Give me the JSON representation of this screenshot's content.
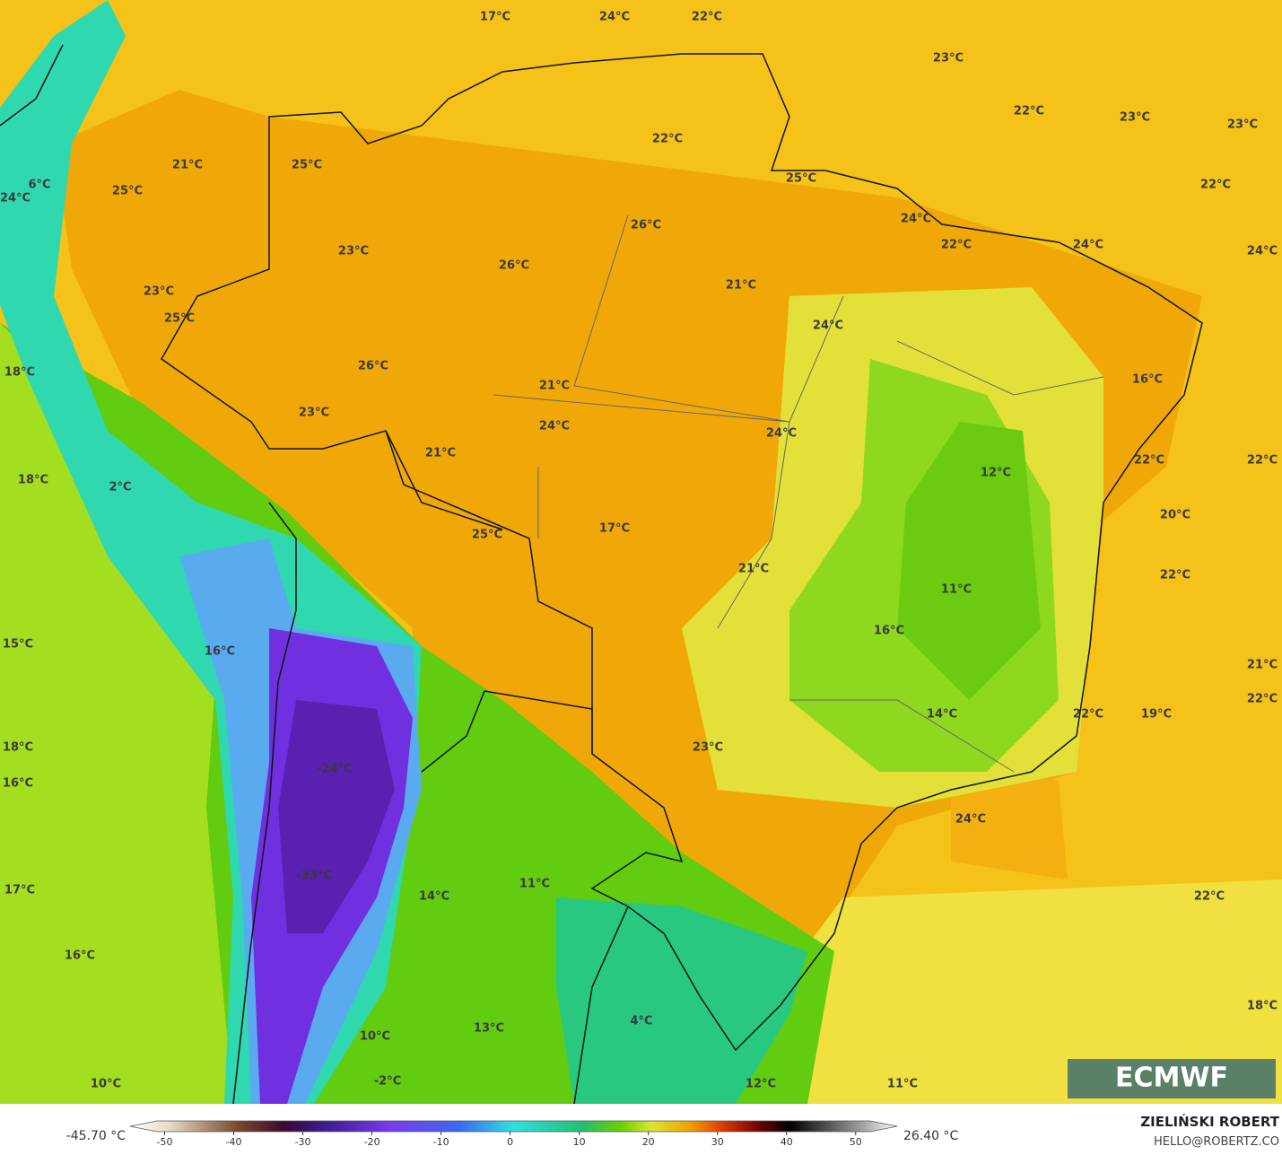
{
  "map": {
    "labels": [
      "17°C",
      "24°C",
      "22°C",
      "23°C",
      "22°C",
      "23°C",
      "23°C",
      "22°C",
      "21°C",
      "25°C",
      "25°C",
      "22°C",
      "6°C",
      "25°C",
      "24°C",
      "24°C",
      "26°C",
      "22°C",
      "24°C",
      "23°C",
      "24°C",
      "26°C",
      "21°C",
      "23°C",
      "25°C",
      "24°C",
      "26°C",
      "18°C",
      "16°C",
      "21°C",
      "23°C",
      "24°C",
      "24°C",
      "21°C",
      "22°C",
      "22°C",
      "12°C",
      "18°C",
      "2°C",
      "20°C",
      "17°C",
      "25°C",
      "21°C",
      "22°C",
      "11°C",
      "16°C",
      "15°C",
      "16°C",
      "21°C",
      "22°C",
      "22°C",
      "19°C",
      "14°C",
      "18°C",
      "23°C",
      "-24°C",
      "16°C",
      "24°C",
      "-33°C",
      "11°C",
      "17°C",
      "14°C",
      "22°C",
      "16°C",
      "18°C",
      "4°C",
      "13°C",
      "10°C",
      "-2°C",
      "10°C",
      "12°C",
      "11°C"
    ]
  },
  "colorbar": {
    "min_label": "-45.70 °C",
    "max_label": "26.40 °C",
    "lim": [
      -55,
      56
    ],
    "ticks": [
      -50,
      -40,
      -30,
      -20,
      -10,
      0,
      10,
      20,
      30,
      40,
      50
    ]
  },
  "logo": {
    "text": "ECMWF"
  },
  "credit": {
    "author": "ZIELIŃSKI ROBERT",
    "email": "HELLO@ROBERTZ.CO"
  }
}
